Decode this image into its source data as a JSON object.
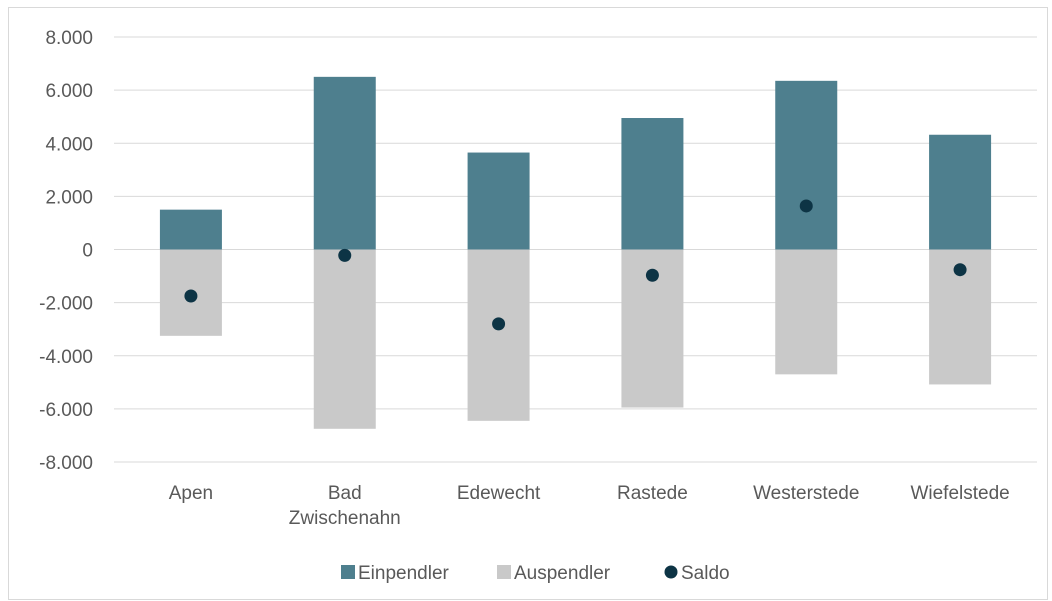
{
  "chart_data": {
    "type": "bar",
    "stacked": true,
    "categories": [
      "Apen",
      "Bad Zwischenahn",
      "Edewecht",
      "Rastede",
      "Westerstede",
      "Wiefelstede"
    ],
    "category_label_lines": [
      [
        "Apen"
      ],
      [
        "Bad",
        "Zwischenahn"
      ],
      [
        "Edewecht"
      ],
      [
        "Rastede"
      ],
      [
        "Westerstede"
      ],
      [
        "Wiefelstede"
      ]
    ],
    "series": [
      {
        "name": "Einpendler",
        "type": "bar",
        "color": "#4e7f8e",
        "values": [
          1500,
          6500,
          3650,
          4950,
          6350,
          4320
        ]
      },
      {
        "name": "Auspendler",
        "type": "bar",
        "color": "#c9c9c9",
        "values": [
          -3250,
          -6750,
          -6450,
          -5950,
          -4700,
          -5080
        ]
      },
      {
        "name": "Saldo",
        "type": "scatter",
        "color": "#0d3445",
        "values": [
          -1750,
          -220,
          -2800,
          -970,
          1640,
          -760
        ]
      }
    ],
    "ylim": [
      -8000,
      8000
    ],
    "yticks": [
      -8000,
      -6000,
      -4000,
      -2000,
      0,
      2000,
      4000,
      6000,
      8000
    ],
    "ytick_labels": [
      "-8.000",
      "-6.000",
      "-4.000",
      "-2.000",
      "0",
      "2.000",
      "4.000",
      "6.000",
      "8.000"
    ],
    "grid": true,
    "legend_position": "bottom",
    "title": "",
    "xlabel": "",
    "ylabel": ""
  }
}
